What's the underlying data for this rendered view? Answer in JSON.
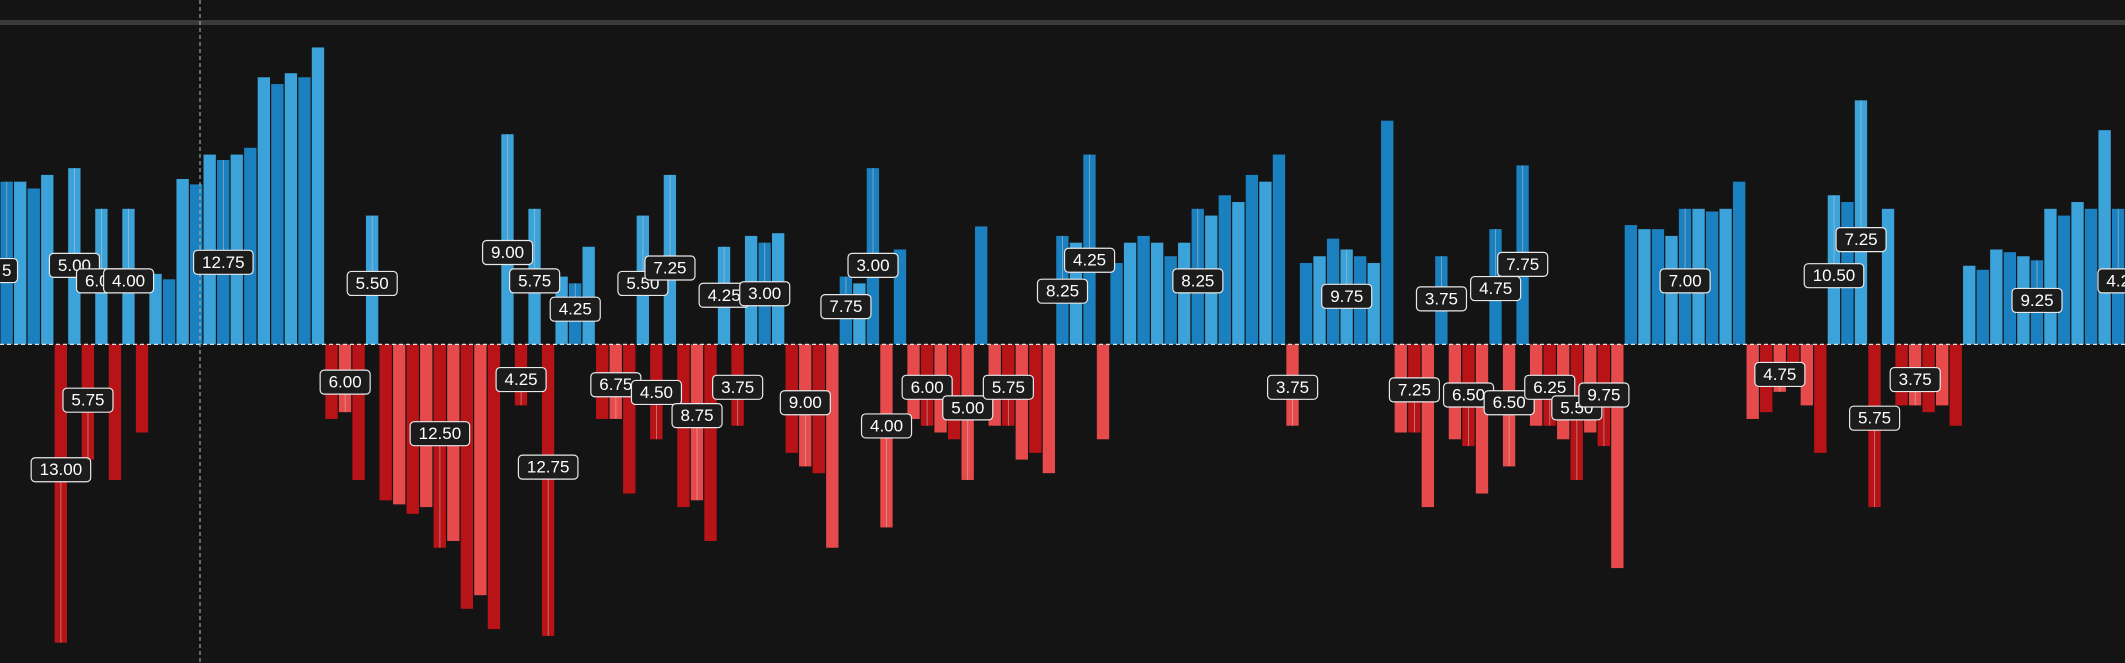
{
  "chart_data": {
    "type": "bar",
    "values": [
      120,
      120,
      115,
      125,
      -220,
      130,
      -85,
      100,
      -100,
      100,
      -65,
      52,
      48,
      122,
      118,
      140,
      136,
      140,
      145,
      197,
      192,
      200,
      197,
      219,
      -55,
      -50,
      -100,
      95,
      -115,
      -118,
      -125,
      -120,
      -150,
      -145,
      -195,
      -185,
      -210,
      155,
      -45,
      100,
      -215,
      50,
      45,
      72,
      -55,
      -55,
      -110,
      95,
      -70,
      125,
      -120,
      -115,
      -145,
      72,
      -60,
      80,
      75,
      82,
      -80,
      -90,
      -95,
      -150,
      50,
      45,
      130,
      -135,
      70,
      -55,
      -60,
      -65,
      -70,
      -100,
      87,
      -60,
      -60,
      -85,
      -80,
      -95,
      80,
      75,
      140,
      -70,
      60,
      75,
      80,
      75,
      65,
      75,
      100,
      95,
      110,
      105,
      125,
      120,
      140,
      -60,
      60,
      65,
      78,
      70,
      65,
      60,
      165,
      -65,
      -65,
      -120,
      65,
      -70,
      -75,
      -110,
      85,
      -90,
      132,
      -60,
      -60,
      -70,
      -100,
      -65,
      -75,
      -165,
      88,
      85,
      85,
      80,
      100,
      100,
      98,
      100,
      120,
      -55,
      -50,
      -35,
      -30,
      -45,
      -80,
      110,
      105,
      180,
      -120,
      100,
      -45,
      -45,
      -50,
      -45,
      -60,
      58,
      55,
      70,
      68,
      65,
      62,
      100,
      95,
      105,
      100,
      158,
      100
    ],
    "annotations": [
      "5",
      null,
      null,
      null,
      "13.00",
      "5.00",
      "5.75",
      "6.00",
      null,
      "4.00",
      null,
      null,
      null,
      null,
      null,
      null,
      "12.75",
      null,
      null,
      null,
      null,
      null,
      null,
      null,
      null,
      "6.00",
      null,
      "5.50",
      null,
      null,
      null,
      null,
      "12.50",
      null,
      null,
      null,
      null,
      "9.00",
      "4.25",
      "5.75",
      "12.75",
      null,
      "4.25",
      null,
      null,
      "6.75",
      null,
      "5.50",
      "4.50",
      "7.25",
      null,
      "8.75",
      null,
      "4.25",
      "3.75",
      null,
      "3.00",
      null,
      null,
      "9.00",
      null,
      null,
      "7.75",
      null,
      "3.00",
      "4.00",
      null,
      null,
      "6.00",
      null,
      null,
      "5.00",
      null,
      null,
      "5.75",
      null,
      null,
      null,
      "8.25",
      null,
      "4.25",
      null,
      null,
      null,
      null,
      null,
      null,
      null,
      "8.25",
      null,
      null,
      null,
      null,
      null,
      null,
      "3.75",
      null,
      null,
      null,
      "9.75",
      null,
      null,
      null,
      null,
      "7.25",
      null,
      "3.75",
      null,
      "6.50",
      null,
      "4.75",
      "6.50",
      "7.75",
      null,
      "6.25",
      null,
      "5.50",
      null,
      "9.75",
      null,
      null,
      null,
      null,
      null,
      "7.00",
      null,
      null,
      null,
      null,
      null,
      null,
      "4.75",
      null,
      null,
      null,
      "10.50",
      null,
      "7.25",
      "5.75",
      null,
      null,
      "3.75",
      null,
      null,
      null,
      null,
      null,
      null,
      null,
      null,
      "9.25",
      null,
      null,
      null,
      null,
      null,
      "4.2"
    ],
    "ylim": [
      -235,
      254
    ],
    "colors": {
      "up": [
        "#1b80bf",
        "#3ba3d9"
      ],
      "down": [
        "#b81418",
        "#e64a4a"
      ]
    }
  }
}
